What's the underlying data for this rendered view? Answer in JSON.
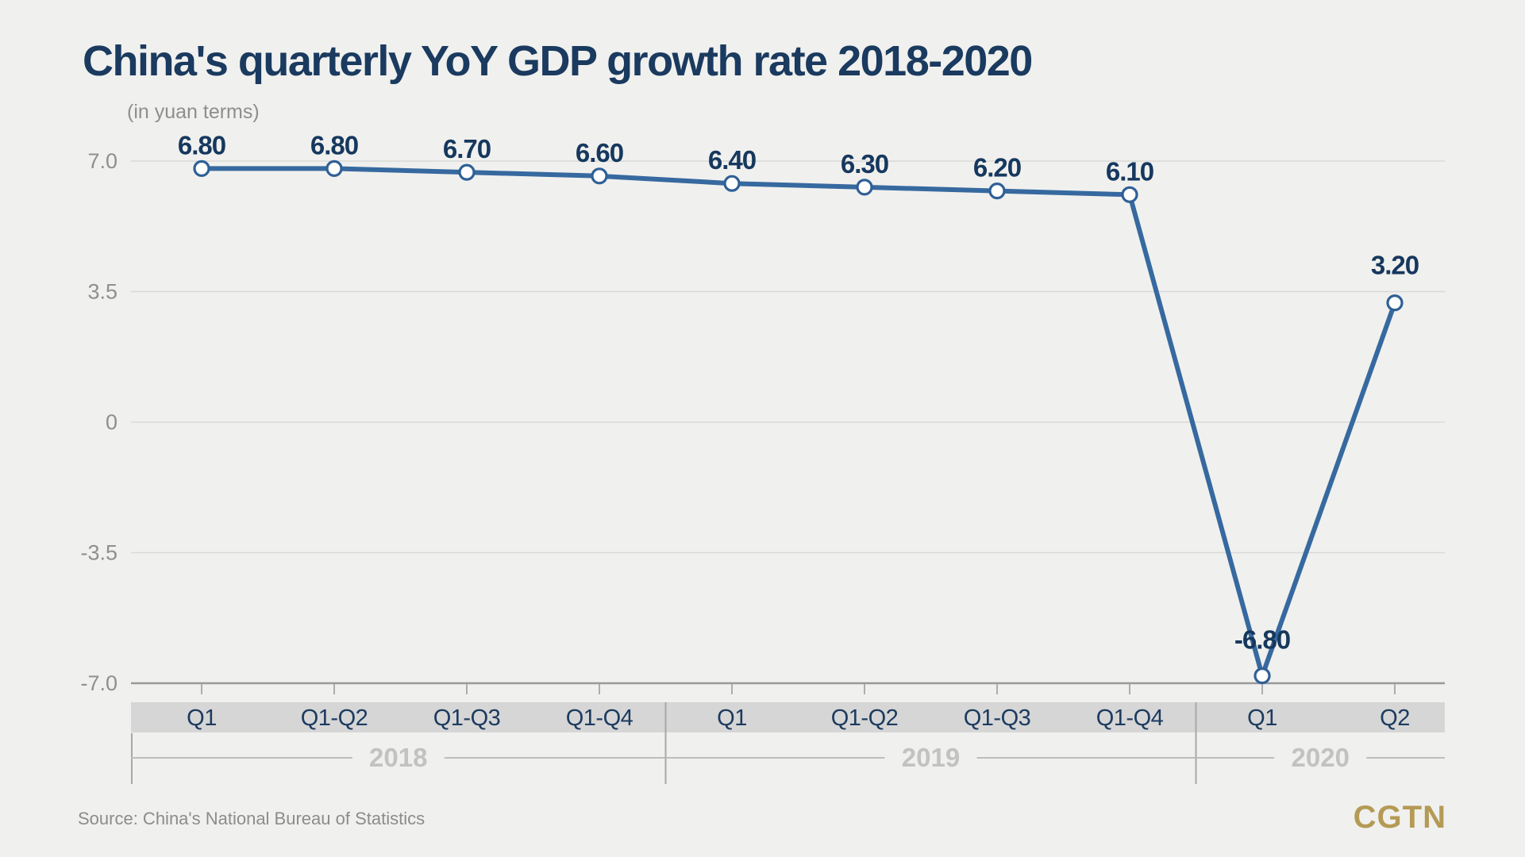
{
  "header": {
    "title": "China's quarterly YoY GDP growth rate 2018-2020",
    "subtitle": "(in yuan terms)"
  },
  "chart_data": {
    "type": "line",
    "title": "China's quarterly YoY GDP growth rate 2018-2020",
    "subtitle": "(in yuan terms)",
    "categories": [
      "Q1",
      "Q1-Q2",
      "Q1-Q3",
      "Q1-Q4",
      "Q1",
      "Q1-Q2",
      "Q1-Q3",
      "Q1-Q4",
      "Q1",
      "Q2"
    ],
    "year_groups": [
      {
        "label": "2018",
        "span": [
          0,
          3
        ]
      },
      {
        "label": "2019",
        "span": [
          4,
          7
        ]
      },
      {
        "label": "2020",
        "span": [
          8,
          9
        ]
      }
    ],
    "values": [
      6.8,
      6.8,
      6.7,
      6.6,
      6.4,
      6.3,
      6.2,
      6.1,
      -6.8,
      3.2
    ],
    "point_labels": [
      "6.80",
      "6.80",
      "6.70",
      "6.60",
      "6.40",
      "6.30",
      "6.20",
      "6.10",
      "-6.80",
      "3.20"
    ],
    "yticks": [
      7.0,
      3.5,
      0,
      -3.5,
      -7.0
    ],
    "ytick_labels": [
      "7.0",
      "3.5",
      "0",
      "-3.5",
      "-7.0"
    ],
    "ylim": [
      -7.0,
      7.0
    ],
    "xlabel": "",
    "ylabel": "",
    "grid": true,
    "legend": false,
    "colors": {
      "background": "#f0f0ee",
      "line": "#36699f",
      "marker_fill": "#ffffff",
      "marker_stroke": "#2f6096",
      "value_label": "#16385e",
      "title": "#1a3a5f",
      "grid": "#d9d9d9",
      "axis_line": "#999999",
      "tick": "#adadad",
      "ytick_text": "#8f8f8f",
      "band": "#d6d6d6",
      "quarter_text": "#1c3b60",
      "year_text": "#c2c2c2",
      "separator": "#a8a8a8",
      "bracket": "#bdbdbd"
    }
  },
  "footer": {
    "source": "Source: China's National Bureau of Statistics",
    "logo": "CGTN"
  }
}
